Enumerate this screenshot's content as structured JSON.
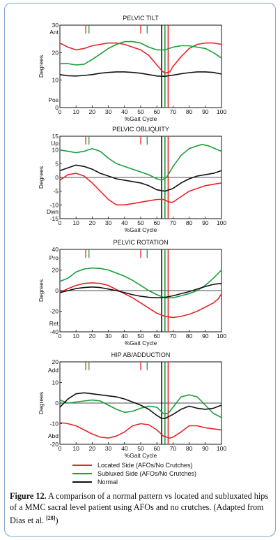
{
  "legend": {
    "items": [
      {
        "label": "Located Side (AFOs/No Crutches)",
        "color": "#e8232a"
      },
      {
        "label": "Subluxed Side (AFOs/No Crutches)",
        "color": "#1a9e3a"
      },
      {
        "label": "Normal",
        "color": "#111111"
      }
    ]
  },
  "caption": {
    "label": "Figure 12.",
    "text": "A comparison of a normal pattern vs located and subluxated hips of a MMC sacral level patient using AFOs and no crutches. (Adapted from Dias et al.",
    "ref": "[28]",
    "close": ")"
  },
  "chart_data": [
    {
      "type": "line",
      "title": "PELVIC TILT",
      "xlabel": "%Gait Cycle",
      "ylabel": "Degrees",
      "xlim": [
        0,
        100
      ],
      "ylim": [
        0,
        30
      ],
      "xticks": [
        "0",
        "10",
        "20",
        "30",
        "40",
        "50",
        "60",
        "70",
        "80",
        "90",
        "100"
      ],
      "yticks": [
        {
          "value": 30,
          "label": "30"
        },
        {
          "value": 20,
          "label": "20"
        },
        {
          "value": 10,
          "label": "10"
        },
        {
          "value": 0,
          "label": "0"
        }
      ],
      "extra_labels": [
        {
          "value": 27.5,
          "label": "Ant"
        },
        {
          "value": 2.8,
          "label": "Pos"
        }
      ],
      "zero_line": false,
      "markers": {
        "toe_off": [
          {
            "x": 63,
            "color": "#111111"
          },
          {
            "x": 65,
            "color": "#1a9e3a"
          },
          {
            "x": 67,
            "color": "#e8232a"
          }
        ],
        "contralateral": [
          {
            "x": 16,
            "color": "#e8232a"
          },
          {
            "x": 18,
            "color": "#1a9e3a"
          },
          {
            "x": 50,
            "color": "#e8232a"
          },
          {
            "x": 54,
            "color": "#1a9e3a"
          }
        ]
      },
      "series": [
        {
          "name": "Located Side (AFOs/No Crutches)",
          "color": "#e8232a",
          "x": [
            0,
            5,
            10,
            15,
            20,
            25,
            30,
            35,
            40,
            45,
            50,
            55,
            60,
            63,
            65,
            68,
            70,
            75,
            80,
            85,
            90,
            95,
            100
          ],
          "y": [
            23.5,
            22,
            21,
            21.5,
            22.5,
            23,
            23.5,
            23.5,
            23,
            22,
            21,
            19,
            15.5,
            13.5,
            12.5,
            13,
            15,
            18.5,
            21.5,
            23,
            23.5,
            23.5,
            23
          ]
        },
        {
          "name": "Subluxed Side (AFOs/No Crutches)",
          "color": "#1a9e3a",
          "x": [
            0,
            5,
            10,
            15,
            20,
            25,
            30,
            35,
            40,
            45,
            50,
            55,
            60,
            63,
            65,
            70,
            75,
            80,
            85,
            90,
            95,
            100
          ],
          "y": [
            16,
            16,
            15.5,
            15.8,
            17.5,
            19.5,
            21.5,
            23,
            24,
            24,
            23.5,
            22,
            21,
            21,
            21,
            22,
            22.5,
            22.5,
            22,
            21.5,
            20,
            18
          ]
        },
        {
          "name": "Normal",
          "color": "#111111",
          "x": [
            0,
            5,
            10,
            15,
            20,
            25,
            30,
            35,
            40,
            45,
            50,
            55,
            60,
            65,
            70,
            75,
            80,
            85,
            90,
            95,
            100
          ],
          "y": [
            12,
            11.6,
            11.5,
            11.7,
            12,
            12.5,
            12.8,
            13,
            13,
            12.8,
            12.5,
            12,
            11.5,
            11.4,
            11.8,
            12.3,
            12.7,
            13,
            13,
            12.8,
            12.2
          ]
        }
      ]
    },
    {
      "type": "line",
      "title": "PELVIC OBLIQUITY",
      "xlabel": "%Gait Cycle",
      "ylabel": "Degrees",
      "xlim": [
        0,
        100
      ],
      "ylim": [
        -15,
        15
      ],
      "xticks": [
        "0",
        "10",
        "20",
        "30",
        "40",
        "50",
        "60",
        "70",
        "80",
        "90",
        "100"
      ],
      "yticks": [
        {
          "value": 15,
          "label": "15"
        },
        {
          "value": 10,
          "label": "10"
        },
        {
          "value": 5,
          "label": "5"
        },
        {
          "value": 0,
          "label": "0"
        },
        {
          "value": -5,
          "label": "-5"
        },
        {
          "value": -10,
          "label": "-10"
        },
        {
          "value": -15,
          "label": "-15"
        }
      ],
      "extra_labels": [
        {
          "value": 12.5,
          "label": "Up"
        },
        {
          "value": -12.5,
          "label": "Dwn"
        }
      ],
      "zero_line": true,
      "markers": {
        "toe_off": [
          {
            "x": 63,
            "color": "#111111"
          },
          {
            "x": 65,
            "color": "#1a9e3a"
          },
          {
            "x": 67,
            "color": "#e8232a"
          }
        ],
        "contralateral": [
          {
            "x": 16,
            "color": "#e8232a"
          },
          {
            "x": 18,
            "color": "#1a9e3a"
          },
          {
            "x": 50,
            "color": "#e8232a"
          },
          {
            "x": 54,
            "color": "#1a9e3a"
          }
        ]
      },
      "series": [
        {
          "name": "Located Side (AFOs/No Crutches)",
          "color": "#e8232a",
          "x": [
            0,
            5,
            10,
            15,
            20,
            25,
            30,
            35,
            40,
            45,
            50,
            55,
            60,
            64,
            68,
            70,
            75,
            80,
            85,
            90,
            95,
            100
          ],
          "y": [
            -1,
            1,
            1.5,
            0.5,
            -2,
            -5,
            -8,
            -10,
            -10,
            -9.5,
            -9,
            -8.5,
            -8,
            -8,
            -9,
            -9,
            -7,
            -5,
            -4,
            -3,
            -2.5,
            -2
          ]
        },
        {
          "name": "Subluxed Side (AFOs/No Crutches)",
          "color": "#1a9e3a",
          "x": [
            0,
            5,
            10,
            15,
            20,
            25,
            30,
            35,
            40,
            45,
            50,
            55,
            60,
            63,
            66,
            70,
            75,
            80,
            85,
            88,
            92,
            96,
            100
          ],
          "y": [
            10,
            9.5,
            9,
            9.5,
            10.5,
            9.5,
            7,
            5,
            4,
            3,
            2,
            1,
            -0.5,
            -1,
            0,
            4,
            8,
            10.5,
            11.5,
            12,
            11.5,
            10.5,
            9.5
          ]
        },
        {
          "name": "Normal",
          "color": "#111111",
          "x": [
            0,
            5,
            10,
            15,
            20,
            25,
            30,
            35,
            40,
            45,
            50,
            55,
            60,
            65,
            70,
            75,
            80,
            85,
            90,
            95,
            100
          ],
          "y": [
            2.5,
            3.5,
            4.5,
            4,
            3,
            1.5,
            0.5,
            -0.5,
            -1,
            -1.5,
            -2,
            -3,
            -4.5,
            -5,
            -4,
            -2,
            -0.5,
            0.5,
            1,
            1.5,
            2.5
          ]
        }
      ]
    },
    {
      "type": "line",
      "title": "PELVIC ROTATION",
      "xlabel": "%Gait Cycle",
      "ylabel": "Degrees",
      "xlim": [
        0,
        100
      ],
      "ylim": [
        -40,
        40
      ],
      "xticks": [
        "0",
        "10",
        "20",
        "30",
        "40",
        "50",
        "60",
        "70",
        "80",
        "90",
        "100"
      ],
      "yticks": [
        {
          "value": 40,
          "label": "40"
        },
        {
          "value": 20,
          "label": "20"
        },
        {
          "value": 0,
          "label": "0"
        },
        {
          "value": -20,
          "label": "-20"
        },
        {
          "value": -40,
          "label": "-40"
        }
      ],
      "extra_labels": [
        {
          "value": 32,
          "label": "Pro"
        },
        {
          "value": -32,
          "label": "Ret"
        }
      ],
      "zero_line": true,
      "markers": {
        "toe_off": [
          {
            "x": 63,
            "color": "#111111"
          },
          {
            "x": 65,
            "color": "#1a9e3a"
          },
          {
            "x": 67,
            "color": "#e8232a"
          }
        ],
        "contralateral": [
          {
            "x": 16,
            "color": "#e8232a"
          },
          {
            "x": 18,
            "color": "#1a9e3a"
          },
          {
            "x": 50,
            "color": "#e8232a"
          },
          {
            "x": 54,
            "color": "#1a9e3a"
          }
        ]
      },
      "series": [
        {
          "name": "Located Side (AFOs/No Crutches)",
          "color": "#e8232a",
          "x": [
            0,
            5,
            10,
            15,
            20,
            25,
            30,
            35,
            40,
            45,
            50,
            55,
            60,
            65,
            70,
            75,
            80,
            85,
            90,
            95,
            98,
            100
          ],
          "y": [
            -2,
            2,
            5,
            7,
            7.5,
            7,
            5,
            1,
            -3,
            -7,
            -12,
            -17,
            -22,
            -25,
            -26,
            -25,
            -23,
            -20,
            -16,
            -12,
            -8,
            -3
          ]
        },
        {
          "name": "Subluxed Side (AFOs/No Crutches)",
          "color": "#1a9e3a",
          "x": [
            0,
            5,
            10,
            15,
            20,
            25,
            30,
            35,
            40,
            45,
            50,
            55,
            60,
            65,
            70,
            75,
            80,
            85,
            90,
            95,
            100
          ],
          "y": [
            9,
            12,
            18,
            21,
            22,
            21.5,
            20,
            17,
            14,
            10,
            5,
            0,
            -4,
            -7,
            -7,
            -5,
            -3,
            0,
            5,
            12,
            20
          ]
        },
        {
          "name": "Normal",
          "color": "#111111",
          "x": [
            0,
            5,
            10,
            15,
            20,
            25,
            30,
            35,
            40,
            45,
            50,
            55,
            60,
            65,
            70,
            75,
            80,
            85,
            90,
            95,
            100
          ],
          "y": [
            -2,
            0,
            2,
            3,
            3.5,
            3,
            1.5,
            0,
            -2,
            -4,
            -5.5,
            -6.5,
            -7,
            -6.5,
            -5,
            -3,
            -1,
            1.5,
            4,
            6,
            7
          ]
        }
      ]
    },
    {
      "type": "line",
      "title": "HIP AB/ADDUCTION",
      "xlabel": "%Gait Cycle",
      "ylabel": "Degrees",
      "xlim": [
        0,
        100
      ],
      "ylim": [
        -20,
        20
      ],
      "xticks": [
        "0",
        "10",
        "20",
        "30",
        "40",
        "50",
        "60",
        "70",
        "80",
        "90",
        "100"
      ],
      "yticks": [
        {
          "value": 20,
          "label": "20"
        },
        {
          "value": 10,
          "label": "10"
        },
        {
          "value": 0,
          "label": "0"
        },
        {
          "value": -10,
          "label": "-10"
        },
        {
          "value": -20,
          "label": "-20"
        }
      ],
      "extra_labels": [
        {
          "value": 16,
          "label": "Add"
        },
        {
          "value": -16,
          "label": "Abd"
        }
      ],
      "zero_line": true,
      "markers": {
        "toe_off": [
          {
            "x": 63,
            "color": "#111111"
          },
          {
            "x": 65,
            "color": "#1a9e3a"
          },
          {
            "x": 67,
            "color": "#e8232a"
          }
        ],
        "contralateral": [
          {
            "x": 16,
            "color": "#e8232a"
          },
          {
            "x": 18,
            "color": "#1a9e3a"
          },
          {
            "x": 50,
            "color": "#e8232a"
          },
          {
            "x": 54,
            "color": "#1a9e3a"
          }
        ]
      },
      "series": [
        {
          "name": "Located Side (AFOs/No Crutches)",
          "color": "#e8232a",
          "x": [
            0,
            5,
            10,
            15,
            20,
            25,
            30,
            35,
            40,
            45,
            50,
            55,
            60,
            64,
            68,
            70,
            75,
            80,
            85,
            90,
            95,
            100
          ],
          "y": [
            -9.5,
            -10,
            -11,
            -13,
            -15,
            -16.5,
            -17,
            -16,
            -14,
            -11,
            -10,
            -10.5,
            -13,
            -16,
            -17,
            -16.5,
            -14,
            -11,
            -11,
            -12,
            -12.5,
            -13
          ]
        },
        {
          "name": "Subluxed Side (AFOs/No Crutches)",
          "color": "#1a9e3a",
          "x": [
            0,
            5,
            10,
            15,
            20,
            25,
            30,
            35,
            40,
            45,
            50,
            55,
            60,
            64,
            67,
            70,
            75,
            80,
            85,
            90,
            95,
            100
          ],
          "y": [
            1.5,
            0,
            0.5,
            1,
            1.5,
            1,
            -1,
            -3,
            -4.5,
            -4,
            -2.5,
            -1.5,
            -2,
            -5,
            -5,
            -2,
            3,
            4,
            3,
            -1,
            -5,
            -7
          ]
        },
        {
          "name": "Normal",
          "color": "#111111",
          "x": [
            0,
            5,
            10,
            15,
            20,
            25,
            30,
            35,
            40,
            45,
            50,
            55,
            60,
            63,
            65,
            70,
            75,
            80,
            85,
            90,
            95,
            100
          ],
          "y": [
            -2,
            2,
            4.5,
            5,
            4.5,
            4,
            3.5,
            3,
            2,
            0.5,
            -1,
            -3,
            -6,
            -7.5,
            -7.5,
            -5.5,
            -3,
            -1.5,
            -2.5,
            -3,
            -2.5,
            -1
          ]
        }
      ]
    }
  ]
}
